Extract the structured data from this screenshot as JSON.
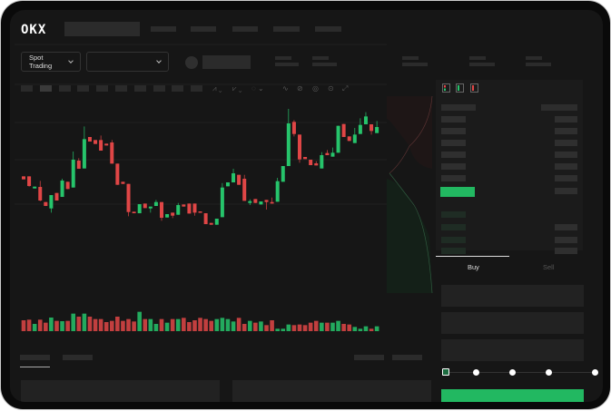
{
  "brand": {
    "logo": "OKX"
  },
  "toolbar": {
    "market_type": "Spot Trading"
  },
  "trade": {
    "tabs": [
      {
        "label": "Buy",
        "active": true
      },
      {
        "label": "Sell",
        "active": false
      }
    ],
    "slider_percent": 0
  },
  "colors": {
    "up": "#26c46b",
    "down": "#e04646",
    "background": "#161616",
    "accent": "#22b861"
  },
  "icons": [
    "chevron-down-icon",
    "orderbook-both-icon",
    "orderbook-bids-icon",
    "orderbook-asks-icon"
  ],
  "chart_data": {
    "type": "candlestick",
    "candles": [
      [
        200,
        200,
        190,
        190
      ],
      [
        200,
        200,
        166,
        168
      ],
      [
        160,
        166,
        160,
        166
      ],
      [
        165,
        185,
        118,
        120
      ],
      [
        115,
        115,
        102,
        102
      ],
      [
        94,
        138,
        80,
        138
      ],
      [
        145,
        145,
        120,
        120
      ],
      [
        132,
        192,
        132,
        186
      ],
      [
        182,
        182,
        158,
        158
      ],
      [
        163,
        282,
        163,
        255
      ],
      [
        252,
        260,
        225,
        225
      ],
      [
        226,
        365,
        226,
        323
      ],
      [
        330,
        330,
        315,
        315
      ],
      [
        320,
        320,
        307,
        307
      ],
      [
        320,
        335,
        285,
        285
      ],
      [
        308,
        308,
        302,
        302
      ],
      [
        312,
        320,
        242,
        242
      ],
      [
        242,
        242,
        172,
        172
      ],
      [
        182,
        182,
        175,
        175
      ],
      [
        175,
        175,
        68,
        82
      ],
      [
        83,
        83,
        78,
        78
      ],
      [
        78,
        108,
        78,
        108
      ],
      [
        110,
        110,
        95,
        95
      ],
      [
        94,
        100,
        80,
        100
      ],
      [
        102,
        122,
        102,
        115
      ],
      [
        115,
        115,
        53,
        63
      ],
      [
        64,
        75,
        64,
        75
      ],
      [
        80,
        80,
        62,
        70
      ],
      [
        73,
        112,
        73,
        105
      ],
      [
        107,
        107,
        100,
        100
      ],
      [
        110,
        110,
        77,
        77
      ],
      [
        110,
        110,
        70,
        80
      ],
      [
        84,
        84,
        80,
        80
      ],
      [
        78,
        78,
        42,
        42
      ],
      [
        46,
        46,
        40,
        40
      ],
      [
        40,
        60,
        40,
        60
      ],
      [
        65,
        178,
        65,
        163
      ],
      [
        167,
        180,
        167,
        180
      ],
      [
        180,
        225,
        180,
        210
      ],
      [
        205,
        205,
        172,
        172
      ],
      [
        192,
        205,
        119,
        119
      ],
      [
        112,
        124,
        105,
        118
      ],
      [
        125,
        125,
        112,
        112
      ],
      [
        107,
        117,
        107,
        117
      ],
      [
        122,
        122,
        90,
        115
      ],
      [
        115,
        130,
        110,
        110
      ],
      [
        116,
        195,
        116,
        184
      ],
      [
        182,
        234,
        182,
        234
      ],
      [
        234,
        423,
        234,
        375
      ],
      [
        380,
        386,
        332,
        340
      ],
      [
        338,
        338,
        245,
        256
      ],
      [
        264,
        264,
        257,
        257
      ],
      [
        255,
        255,
        237,
        237
      ],
      [
        243,
        250,
        236,
        236
      ],
      [
        226,
        280,
        226,
        270
      ],
      [
        277,
        287,
        270,
        270
      ],
      [
        265,
        295,
        265,
        278
      ],
      [
        278,
        367,
        278,
        367
      ],
      [
        373,
        373,
        330,
        330
      ],
      [
        332,
        332,
        317,
        317
      ],
      [
        310,
        360,
        310,
        338
      ],
      [
        340,
        392,
        340,
        370
      ],
      [
        372,
        412,
        372,
        398
      ],
      [
        372,
        372,
        338,
        350
      ],
      [
        343,
        383,
        343,
        363
      ]
    ],
    "volumes": [
      36,
      38,
      24,
      38,
      28,
      45,
      34,
      33,
      34,
      58,
      48,
      58,
      48,
      40,
      40,
      30,
      34,
      48,
      34,
      40,
      32,
      64,
      40,
      40,
      24,
      40,
      28,
      40,
      40,
      44,
      30,
      36,
      44,
      40,
      34,
      40,
      44,
      40,
      32,
      44,
      24,
      34,
      28,
      32,
      20,
      36,
      8,
      8,
      22,
      20,
      22,
      20,
      28,
      34,
      28,
      28,
      28,
      34,
      24,
      22,
      14,
      8,
      16,
      8,
      16
    ]
  }
}
